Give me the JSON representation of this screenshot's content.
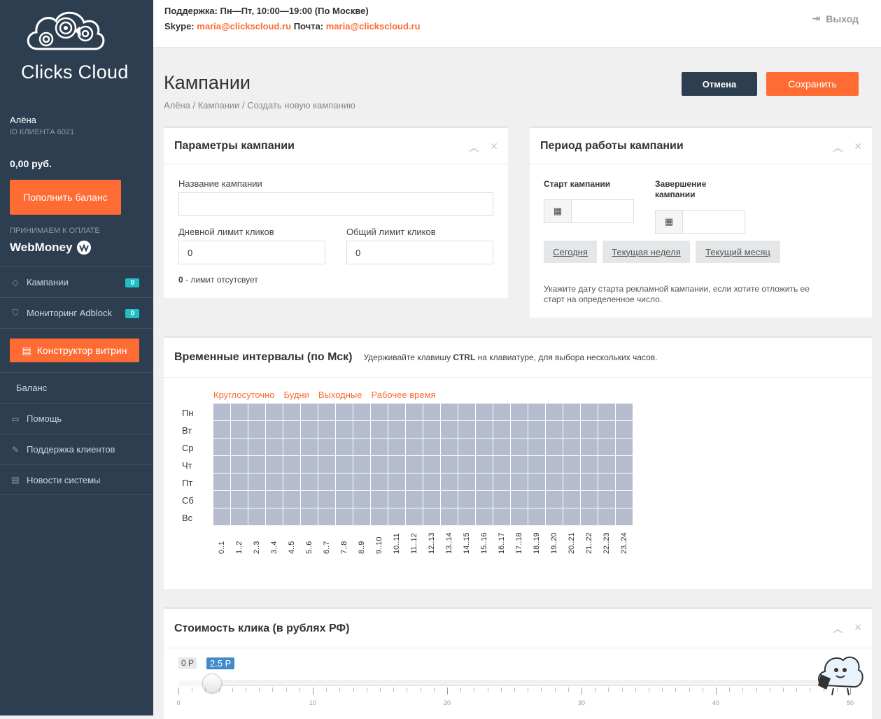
{
  "brand": {
    "name": "Clicks Cloud"
  },
  "user": {
    "name": "Алёна",
    "client_id": "ID КЛИЕНТА 6021",
    "balance": "0,00 руб."
  },
  "sidebar": {
    "topup_label": "Пополнить баланс",
    "payment_label": "ПРИНИМАЕМ К ОПЛАТЕ",
    "payment_system": "WebMoney",
    "items": [
      {
        "label": "Кампании",
        "icon": "diamond-icon",
        "badge": "0"
      },
      {
        "label": "Мониторинг Adblock",
        "icon": "shield-icon",
        "badge": "0"
      },
      {
        "label": "Конструктор витрин",
        "icon": "newspaper-icon"
      },
      {
        "label": "Баланс"
      },
      {
        "label": "Помощь",
        "icon": "laptop-icon"
      },
      {
        "label": "Поддержка клиентов",
        "icon": "wrench-icon"
      },
      {
        "label": "Новости системы",
        "icon": "news-icon"
      }
    ]
  },
  "header": {
    "support_hours": "Поддержка: Пн—Пт, 10:00—19:00 (По Москве)",
    "skype_label": "Skype:",
    "skype_value": "maria@clickscloud.ru",
    "mail_label": "Почта:",
    "mail_value": "maria@clickscloud.ru",
    "logout_label": "Выход"
  },
  "page": {
    "title": "Кампании",
    "breadcrumb": "Алёна / Кампании / Создать новую кампанию",
    "cancel_label": "Отмена",
    "save_label": "Сохранить"
  },
  "params_panel": {
    "title": "Параметры кампании",
    "name_label": "Название кампании",
    "name_value": "",
    "daily_limit_label": "Дневной лимит кликов",
    "daily_limit_value": "0",
    "total_limit_label": "Общий лимит кликов",
    "total_limit_value": "0",
    "limit_hint_bold": "0",
    "limit_hint": " - лимит отсутсвует"
  },
  "period_panel": {
    "title": "Период работы кампании",
    "start_label": "Старт кампании",
    "end_label_1": "Завершение",
    "end_label_2": "кампании",
    "today_label": "Сегодня",
    "week_label": "Текущая неделя",
    "month_label": "Текущий месяц",
    "hint_1": "Укажите дату старта рекламной кампании, если хотите отложить ее",
    "hint_2": "старт на определенное число."
  },
  "time_panel": {
    "title": "Временные интервалы (по Мск)",
    "hint_pre": "Удерживайте клавишу ",
    "hint_key": "CTRL",
    "hint_post": " на клавиатуре, для выбора нескольких часов.",
    "presets": [
      "Круглосуточно",
      "Будни",
      "Выходные",
      "Рабочее время"
    ],
    "days": [
      "Пн",
      "Вт",
      "Ср",
      "Чт",
      "Пт",
      "Сб",
      "Вс"
    ],
    "hours": [
      "0..1",
      "1..2",
      "2..3",
      "3..4",
      "4..5",
      "5..6",
      "6..7",
      "7..8",
      "8..9",
      "9..10",
      "10..11",
      "11..12",
      "12..13",
      "13..14",
      "14..15",
      "15..16",
      "16..17",
      "17..18",
      "18..19",
      "19..20",
      "20..21",
      "21..22",
      "22..23",
      "23..24"
    ]
  },
  "price_panel": {
    "title": "Стоимость клика (в рублях РФ)",
    "min_label": "0 Р",
    "current_label": "2.5 Р",
    "value": 2.5,
    "min": 0,
    "max": 50,
    "scale_labels": [
      "0",
      "10",
      "20",
      "30",
      "40",
      "50"
    ]
  },
  "colors": {
    "sidebar": "#2c3e50",
    "accent": "#fe6c34",
    "badge": "#1fbfc5",
    "grid_cell": "#b4bccd",
    "slider_tag": "#428bca"
  }
}
